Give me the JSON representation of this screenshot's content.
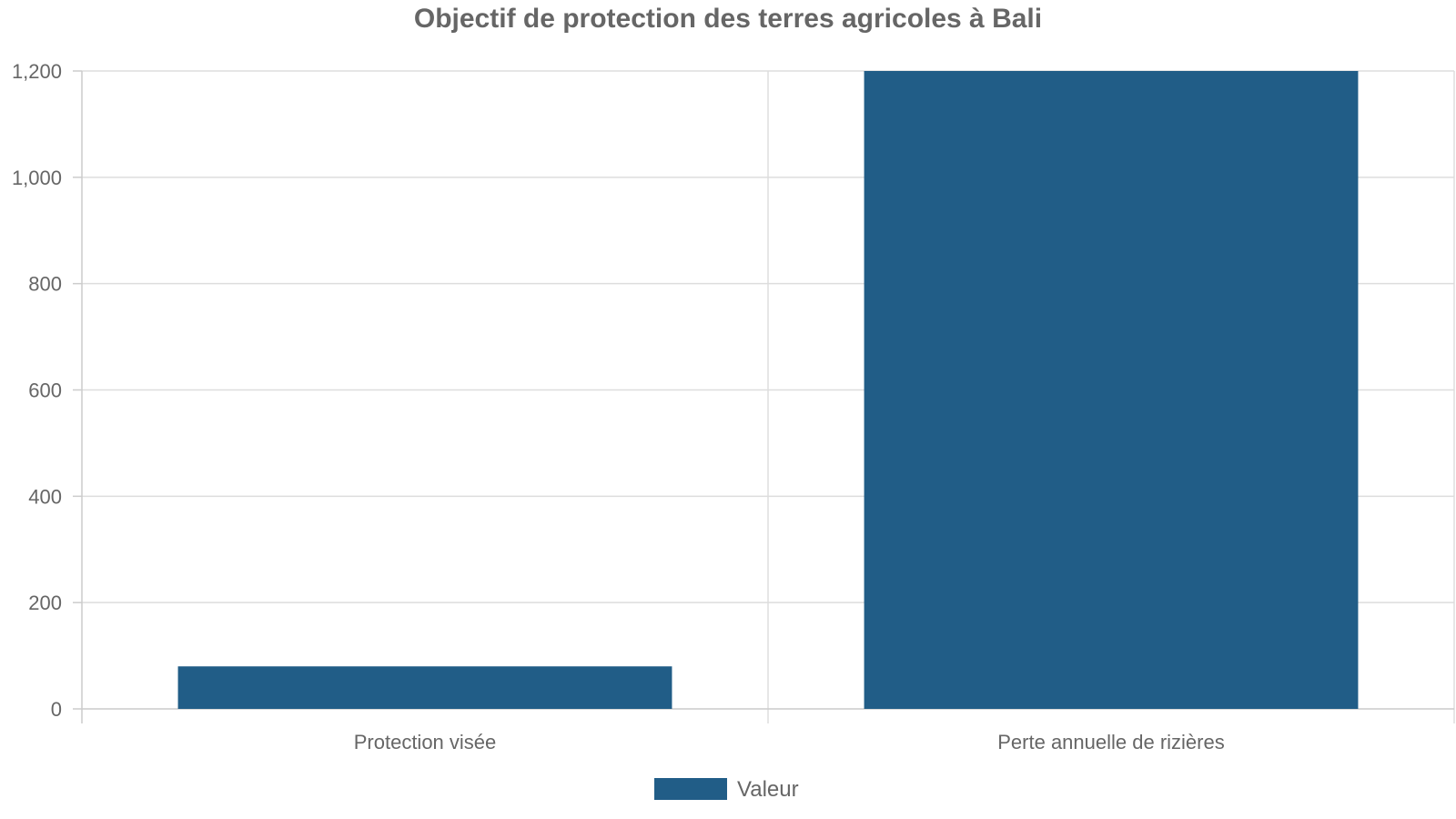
{
  "chart_data": {
    "type": "bar",
    "title": "Objectif de protection des terres agricoles à Bali",
    "xlabel": "",
    "ylabel": "",
    "categories": [
      "Protection visée",
      "Perte annuelle de rizières"
    ],
    "series": [
      {
        "name": "Valeur",
        "values": [
          80,
          1200
        ],
        "color": "#215d87"
      }
    ],
    "ylim": [
      0,
      1200
    ],
    "yticks": [
      0,
      200,
      400,
      600,
      800,
      1000,
      1200
    ],
    "ytick_labels": [
      "0",
      "200",
      "400",
      "600",
      "800",
      "1,000",
      "1,200"
    ],
    "grid": true,
    "legend_position": "bottom-center"
  }
}
